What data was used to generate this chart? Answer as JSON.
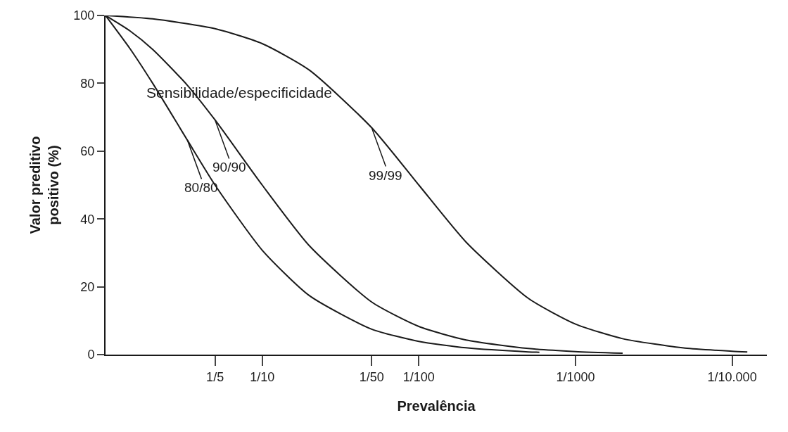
{
  "chart_data": {
    "type": "line",
    "xlabel": "Prevalência",
    "ylabel": "Valor preditivo\npositivo (%)",
    "log": "x",
    "xlim": [
      1,
      6e-05
    ],
    "xticks": [
      {
        "value": 0.2,
        "label": "1/5"
      },
      {
        "value": 0.1,
        "label": "1/10"
      },
      {
        "value": 0.02,
        "label": "1/50"
      },
      {
        "value": 0.01,
        "label": "1/100"
      },
      {
        "value": 0.001,
        "label": "1/1000"
      },
      {
        "value": 0.0001,
        "label": "1/10.000"
      }
    ],
    "ylim": [
      0,
      100
    ],
    "yticks": [
      0,
      20,
      40,
      60,
      80,
      100
    ],
    "legend": false,
    "marker": "none",
    "line_style": "solid",
    "annotations": [
      "Sensibilidade/especificidade"
    ],
    "series": [
      {
        "name": "80/80",
        "color": "#1a1a1a",
        "x": [
          1,
          0.7,
          0.5,
          0.3,
          0.2,
          0.1,
          0.05,
          0.02,
          0.01,
          0.005,
          0.002,
          0.0017
        ],
        "values": [
          100,
          90.3,
          80,
          63.2,
          50,
          30.8,
          17.4,
          7.5,
          3.9,
          2.0,
          0.8,
          0.7
        ]
      },
      {
        "name": "90/90",
        "color": "#1a1a1a",
        "x": [
          1,
          0.7,
          0.5,
          0.3,
          0.2,
          0.1,
          0.05,
          0.02,
          0.01,
          0.005,
          0.002,
          0.001,
          0.0005
        ],
        "values": [
          100,
          95.5,
          90,
          79.4,
          69.2,
          50,
          32.1,
          15.5,
          8.3,
          4.3,
          1.8,
          0.9,
          0.4
        ]
      },
      {
        "name": "99/99",
        "color": "#1a1a1a",
        "x": [
          1,
          0.5,
          0.2,
          0.1,
          0.05,
          0.02,
          0.01,
          0.005,
          0.002,
          0.001,
          0.0005,
          0.0002,
          0.0001,
          8e-05
        ],
        "values": [
          100,
          99,
          96.1,
          91.7,
          83.9,
          66.9,
          50,
          33.2,
          16.6,
          9.0,
          4.7,
          1.9,
          1.0,
          0.8
        ]
      }
    ]
  }
}
